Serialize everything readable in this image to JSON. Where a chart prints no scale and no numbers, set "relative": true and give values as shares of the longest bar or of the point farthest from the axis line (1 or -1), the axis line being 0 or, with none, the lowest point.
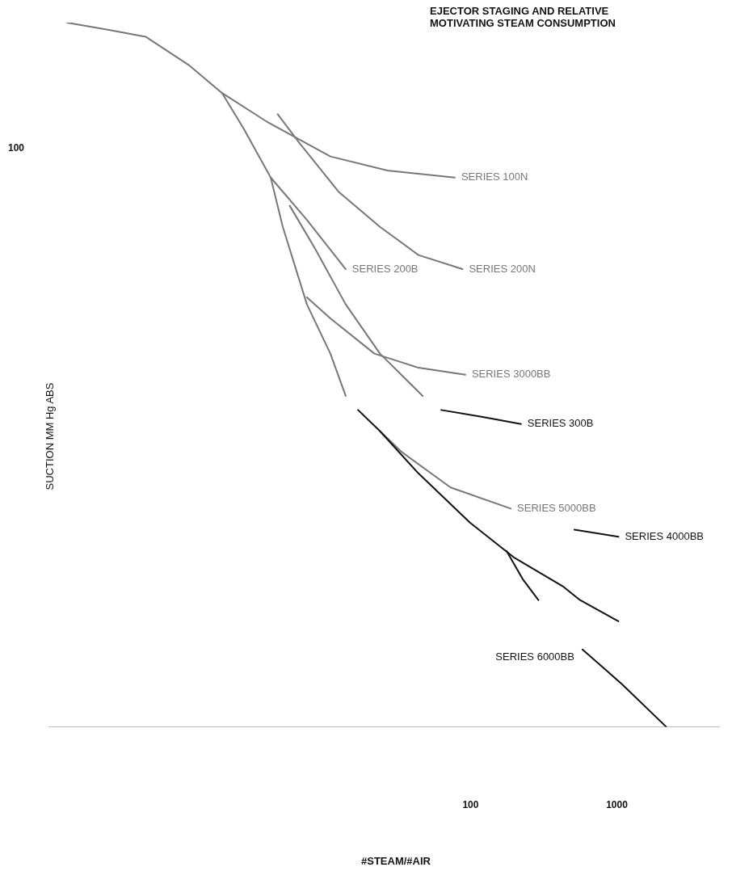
{
  "chart_data": {
    "type": "line",
    "title": "EJECTOR STAGING AND RELATIVE\nMOTIVATING STEAM CONSUMPTION",
    "xlabel": "#STEAM/#AIR",
    "ylabel": "SUCTION MM Hg ABS",
    "relative": true,
    "log": "x",
    "xlim": [
      0.13,
      5000
    ],
    "xticks": [
      100,
      1000
    ],
    "grid": false,
    "legend": false,
    "marker": "none",
    "line_style": "solid",
    "annotations": [
      "100"
    ],
    "series": [
      {
        "name": "SERIES 100N",
        "color": "#777777",
        "x": [
          0.174,
          0.33,
          0.6,
          1.18,
          2.0,
          4.0,
          11,
          27,
          78
        ],
        "values": [
          1.0,
          0.99,
          0.98,
          0.94,
          0.9,
          0.86,
          0.81,
          0.79,
          0.78
        ]
      },
      {
        "name": "SERIES 200B",
        "color": "#777777",
        "x": [
          2.0,
          2.8,
          4.3,
          7.6,
          14
        ],
        "values": [
          0.9,
          0.85,
          0.78,
          0.72,
          0.65
        ]
      },
      {
        "name": "SERIES 200N",
        "color": "#777777",
        "x": [
          4.8,
          6.7,
          12.5,
          24,
          44,
          88
        ],
        "values": [
          0.87,
          0.83,
          0.76,
          0.71,
          0.67,
          0.65
        ]
      },
      {
        "color": "#777777",
        "x": [
          4.3,
          5.2,
          7.6,
          11,
          14
        ],
        "values": [
          0.78,
          0.71,
          0.6,
          0.53,
          0.47
        ]
      },
      {
        "color": "#777777",
        "x": [
          5.8,
          8.6,
          14,
          24,
          47
        ],
        "values": [
          0.74,
          0.68,
          0.6,
          0.53,
          0.47
        ]
      },
      {
        "name": "SERIES 3000BB",
        "color": "#777777",
        "x": [
          7.6,
          11,
          22,
          44,
          92
        ],
        "values": [
          0.61,
          0.58,
          0.53,
          0.51,
          0.5
        ]
      },
      {
        "color": "#111111",
        "x": [
          17,
          24,
          44,
          99,
          200,
          425,
          561,
          1025
        ],
        "values": [
          0.45,
          0.42,
          0.36,
          0.29,
          0.24,
          0.2,
          0.18,
          0.15
        ]
      },
      {
        "name": "SERIES 5000BB",
        "color": "#777777",
        "x": [
          24,
          34,
          73,
          188
        ],
        "values": [
          0.42,
          0.39,
          0.34,
          0.31
        ]
      },
      {
        "name": "SERIES 300B",
        "color": "#111111",
        "x": [
          63,
          121,
          221
        ],
        "values": [
          0.45,
          0.44,
          0.43
        ]
      },
      {
        "name": "SERIES 4000BB",
        "color": "#111111",
        "x": [
          513,
          1025
        ],
        "values": [
          0.28,
          0.27
        ]
      },
      {
        "color": "#111111",
        "x": [
          176,
          227,
          291
        ],
        "values": [
          0.25,
          0.21,
          0.18
        ]
      },
      {
        "name": "SERIES 6000BB",
        "color": "#111111",
        "x": [
          582,
          849,
          1092,
          2180
        ],
        "values": [
          0.11,
          0.08,
          0.06,
          0
        ]
      }
    ]
  }
}
